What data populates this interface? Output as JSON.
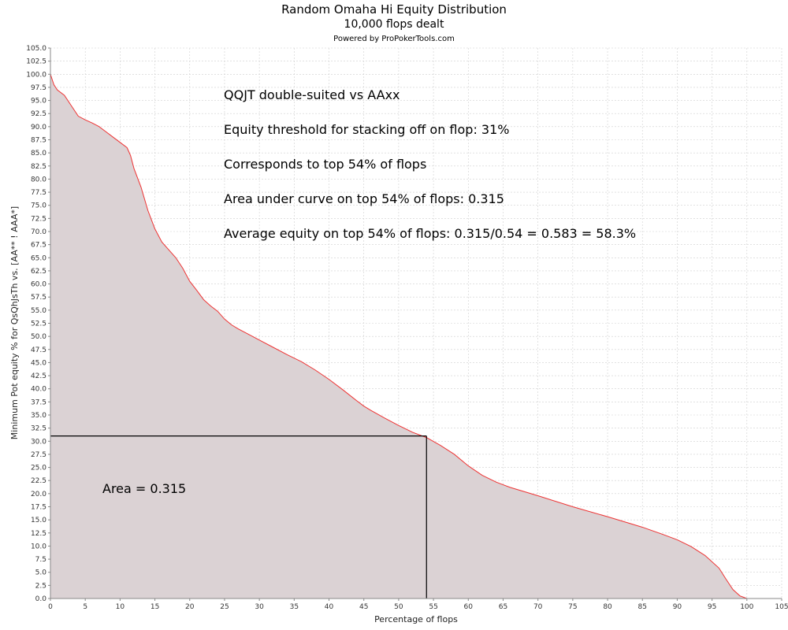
{
  "chart_data": {
    "type": "area",
    "title": "Random Omaha Hi Equity Distribution",
    "subtitle": "10,000 flops dealt",
    "credit": "Powered by ProPokerTools.com",
    "xlabel": "Percentage of flops",
    "ylabel": "Minimum Pot equity % for QsQhJsTh vs. [AA** ! AAA*]",
    "xlim": [
      0,
      105
    ],
    "ylim": [
      0,
      105
    ],
    "x_ticks": [
      0,
      5,
      10,
      15,
      20,
      25,
      30,
      35,
      40,
      45,
      50,
      55,
      60,
      65,
      70,
      75,
      80,
      85,
      90,
      95,
      100,
      105
    ],
    "y_ticks": [
      "0.0",
      "2.5",
      "5.0",
      "7.5",
      "10.0",
      "12.5",
      "15.0",
      "17.5",
      "20.0",
      "22.5",
      "25.0",
      "27.5",
      "30.0",
      "32.5",
      "35.0",
      "37.5",
      "40.0",
      "42.5",
      "45.0",
      "47.5",
      "50.0",
      "52.5",
      "55.0",
      "57.5",
      "60.0",
      "62.5",
      "65.0",
      "67.5",
      "70.0",
      "72.5",
      "75.0",
      "77.5",
      "80.0",
      "82.5",
      "85.0",
      "87.5",
      "90.0",
      "92.5",
      "95.0",
      "97.5",
      "100.0",
      "102.5",
      "105.0"
    ],
    "grid": true,
    "curve_color": "#ee3333",
    "fill_color": "#dbd2d4",
    "series": [
      {
        "x": [
          0,
          0.5,
          1,
          2,
          3,
          4,
          5,
          6,
          7,
          8,
          9,
          10,
          11,
          11.5,
          12,
          13,
          14,
          15,
          16,
          17,
          18,
          19,
          20,
          21,
          22,
          23,
          24,
          25,
          26,
          27,
          28,
          30,
          32,
          34,
          36,
          38,
          40,
          42,
          44,
          45,
          46,
          48,
          50,
          52,
          54,
          56,
          58,
          60,
          62,
          64,
          66,
          70,
          75,
          80,
          85,
          88,
          90,
          92,
          94,
          96,
          97,
          98,
          99,
          100
        ],
        "y": [
          100,
          98,
          97,
          96,
          94,
          92,
          91.3,
          90.7,
          90,
          89,
          88,
          87,
          86,
          84.5,
          82,
          78.5,
          74,
          70.5,
          68,
          66.5,
          65,
          63,
          60.5,
          58.8,
          57,
          55.8,
          54.8,
          53.3,
          52.2,
          51.4,
          50.7,
          49.3,
          47.9,
          46.5,
          45.2,
          43.6,
          41.8,
          39.8,
          37.7,
          36.7,
          35.9,
          34.4,
          33,
          31.7,
          30.7,
          29.2,
          27.5,
          25.3,
          23.5,
          22.2,
          21.2,
          19.6,
          17.5,
          15.6,
          13.6,
          12.2,
          11.2,
          9.9,
          8.2,
          5.8,
          3.7,
          1.7,
          0.5,
          0
        ]
      }
    ],
    "threshold": {
      "x": 54,
      "y": 31
    },
    "annotations": [
      "QQJT double-suited vs AAxx",
      "Equity threshold for stacking off on flop: 31%",
      "Corresponds to top 54% of flops",
      "Area under curve on top 54% of flops: 0.315",
      "Average equity on top 54% of flops: 0.315/0.54 = 0.583 = 58.3%"
    ],
    "area_label": "Area = 0.315"
  }
}
